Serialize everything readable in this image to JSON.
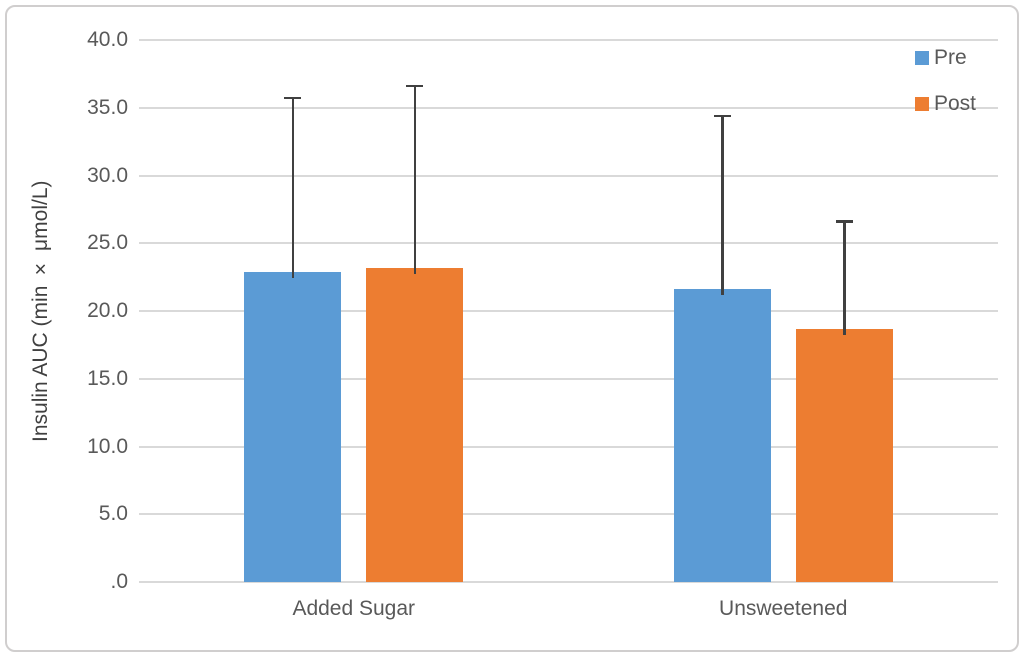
{
  "chart_data": {
    "type": "bar",
    "title": "",
    "xlabel": "",
    "ylabel": "Insulin AUC (min × μmol/L)",
    "ylim": [
      0,
      40
    ],
    "grid": "horizontal",
    "legend_position": "top-right",
    "categories": [
      "Added Sugar",
      "Unsweetened"
    ],
    "series": [
      {
        "name": "Pre",
        "color": "#5B9BD5",
        "values": [
          22.9,
          21.6
        ],
        "error_plus": [
          12.9,
          12.9
        ]
      },
      {
        "name": "Post",
        "color": "#ED7D31",
        "values": [
          23.2,
          18.7
        ],
        "error_plus": [
          13.5,
          8.0
        ]
      }
    ],
    "yticks": [
      {
        "value": 0,
        "label": ".0"
      },
      {
        "value": 5,
        "label": "5.0"
      },
      {
        "value": 10,
        "label": "10.0"
      },
      {
        "value": 15,
        "label": "15.0"
      },
      {
        "value": 20,
        "label": "20.0"
      },
      {
        "value": 25,
        "label": "25.0"
      },
      {
        "value": 30,
        "label": "30.0"
      },
      {
        "value": 35,
        "label": "35.0"
      },
      {
        "value": 40,
        "label": "40.0"
      }
    ],
    "colors": {
      "grid": "#D9D9D9",
      "axis_line": "#D9D9D9",
      "error_bar": "#404040",
      "text": "#595959",
      "frame_border": "#D0CECE",
      "background": "#FFFFFF"
    }
  }
}
